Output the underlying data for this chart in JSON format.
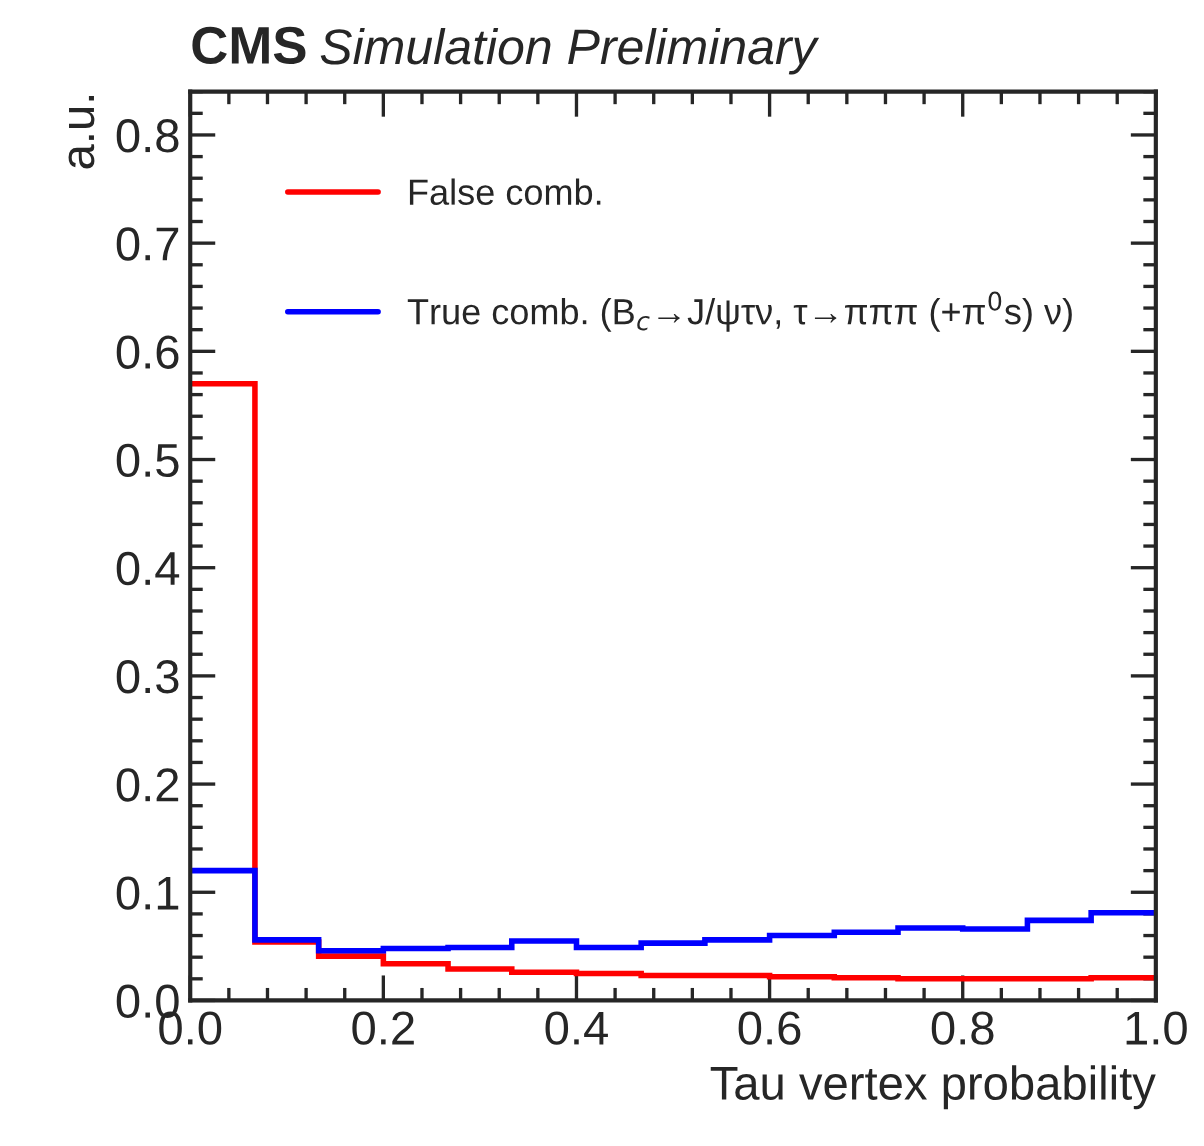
{
  "chart_data": {
    "type": "histogram",
    "title": "CMS",
    "subtitle": "Simulation Preliminary",
    "xlabel": "Tau vertex probability",
    "ylabel": "a.u.",
    "bins": [
      0.0,
      0.067,
      0.133,
      0.2,
      0.267,
      0.333,
      0.4,
      0.467,
      0.533,
      0.6,
      0.667,
      0.733,
      0.8,
      0.867,
      0.933,
      1.0
    ],
    "series": [
      {
        "name": "False comb.",
        "color": "#ff0000",
        "values": [
          0.57,
          0.054,
          0.041,
          0.034,
          0.029,
          0.026,
          0.025,
          0.023,
          0.023,
          0.022,
          0.021,
          0.02,
          0.02,
          0.02,
          0.021
        ]
      },
      {
        "name": "True comb. (B$_{c}$→J/ψτν, τ→πππ (+π$^{0}$s) ν)",
        "color": "#0000ff",
        "values": [
          0.12,
          0.056,
          0.046,
          0.048,
          0.049,
          0.055,
          0.049,
          0.053,
          0.056,
          0.06,
          0.063,
          0.067,
          0.066,
          0.074,
          0.081
        ]
      }
    ],
    "xlim": [
      0.0,
      1.0
    ],
    "ylim": [
      0.0,
      0.84
    ],
    "xticks": [
      {
        "value": 0.0,
        "label": "0.0"
      },
      0.2,
      0.4,
      0.6,
      0.8,
      {
        "value": 1.0,
        "label": "1.0"
      }
    ],
    "yticks": [
      {
        "value": 0.0,
        "label": "0.0"
      },
      0.1,
      0.2,
      0.3,
      0.4,
      0.5,
      0.6,
      0.7,
      0.8
    ],
    "grid": false,
    "legend": "top left"
  }
}
